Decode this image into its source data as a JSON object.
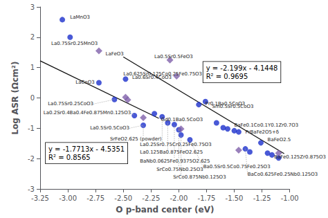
{
  "chart_data": {
    "type": "scatter",
    "xlabel": "O p-band center (eV)",
    "ylabel": "Log ASR (Ωcm²)",
    "xlim": [
      -3.25,
      -1.0
    ],
    "ylim": [
      -3.0,
      3.0
    ],
    "xticks": [
      {
        "value": -3.25,
        "label": "-3.25"
      },
      {
        "value": -3.0,
        "label": "-3.00"
      },
      {
        "value": -2.75,
        "label": "-2.75"
      },
      {
        "value": -2.5,
        "label": "-2.50"
      },
      {
        "value": -2.25,
        "label": "-2.25"
      },
      {
        "value": -2.0,
        "label": "-2.00"
      },
      {
        "value": -1.75,
        "label": "-1.75"
      },
      {
        "value": -1.5,
        "label": "-1.50"
      },
      {
        "value": -1.25,
        "label": "-1.25"
      },
      {
        "value": -1.0,
        "label": "-1.00"
      }
    ],
    "yticks": [
      -3,
      -2,
      -1,
      0,
      1,
      2,
      3
    ],
    "grid": false,
    "series": [
      {
        "type": "line",
        "color": "#111111",
        "x": [
          -3.25,
          -2.18
        ],
        "values": [
          1.221625,
          -0.673666
        ]
      },
      {
        "type": "line",
        "color": "#111111",
        "x": [
          -2.5,
          -1.05
        ],
        "values": [
          1.3527,
          -1.83585
        ]
      },
      {
        "type": "scatter",
        "marker": "circle",
        "color": "#1c2fcc",
        "x": [
          -3.05,
          -2.98,
          -2.72,
          -2.58,
          -2.48,
          -2.4,
          -2.32,
          -2.22,
          -2.15,
          -2.1,
          -2.04,
          -2.0,
          -1.98,
          -1.9,
          -1.82,
          -1.76,
          -1.66,
          -1.6,
          -1.56,
          -1.5,
          -1.46,
          -1.4,
          -1.36,
          -1.26,
          -1.2,
          -1.16,
          -1.1
        ],
        "values": [
          2.58,
          2.0,
          0.5,
          -0.05,
          0.62,
          -0.58,
          -0.9,
          -0.52,
          -0.62,
          -0.82,
          -0.88,
          -1.05,
          -1.22,
          -1.38,
          -0.22,
          -0.12,
          -0.82,
          -0.98,
          -1.02,
          -1.08,
          -1.12,
          -1.68,
          -1.78,
          -1.48,
          -1.82,
          -1.88,
          -1.98
        ]
      },
      {
        "type": "scatter",
        "marker": "diamond",
        "color": "#8060aa",
        "x": [
          -2.72,
          -2.48,
          -2.46,
          -2.32,
          -2.08,
          -2.02,
          -1.98,
          -1.46,
          -1.1
        ],
        "values": [
          1.55,
          0.02,
          -0.06,
          -0.65,
          1.25,
          0.72,
          -1.02,
          -1.72,
          -1.82
        ]
      }
    ],
    "annotations": [
      {
        "text": "SrFeO2.625 (powder)",
        "x": -2.32,
        "y": -0.9,
        "text_x": -2.62,
        "text_y": -1.35,
        "arrow": true
      },
      {
        "text": "La0.25Sr0.75Cr0.25Fe0.75O3",
        "x": -2.15,
        "y": -0.62,
        "text_x": -2.35,
        "text_y": -1.55,
        "arrow": true
      },
      {
        "text": "La0.125Ba0.875FeO2.625",
        "x": -2.1,
        "y": -0.82,
        "text_x": -2.35,
        "text_y": -1.8,
        "arrow": true
      },
      {
        "text": "BaNb0.0625Fe0.9375O2.625",
        "x": -2.04,
        "y": -0.88,
        "text_x": -2.35,
        "text_y": -2.08,
        "arrow": true
      },
      {
        "text": "SrCo0.75Nb0.25O3",
        "x": -2.0,
        "y": -1.05,
        "text_x": -2.2,
        "text_y": -2.35,
        "arrow": true
      },
      {
        "text": "SrCo0.875Nb0.125O3",
        "x": -1.98,
        "y": -1.22,
        "text_x": -2.05,
        "text_y": -2.62,
        "arrow": true
      },
      {
        "text": "Ba0.5Sr0.5Co0.75Fe0.25O3",
        "x": -1.9,
        "y": -1.38,
        "text_x": -1.78,
        "text_y": -2.28,
        "arrow": true
      },
      {
        "text": "BaCo0.625Fe0.25Nb0.125O3",
        "x": -1.4,
        "y": -1.68,
        "text_x": -1.38,
        "text_y": -2.52,
        "arrow": true
      },
      {
        "text": "LaMnO3",
        "x": -3.05,
        "y": 2.58,
        "text_x": -2.98,
        "text_y": 2.65,
        "arrow": false
      },
      {
        "text": "La0.75Sr0.25MnO3",
        "x": -2.98,
        "y": 2.0,
        "text_x": -3.15,
        "text_y": 1.8,
        "arrow": false
      },
      {
        "text": "LaCoO3",
        "x": -2.72,
        "y": 0.5,
        "text_x": -2.93,
        "text_y": 0.52,
        "arrow": false
      },
      {
        "text": "La0.75Sr0.25CoO3",
        "x": -2.58,
        "y": -0.05,
        "text_x": -3.18,
        "text_y": -0.2,
        "arrow": true
      },
      {
        "text": "La0.6Sr0.4CoO3",
        "x": -2.48,
        "y": 0.62,
        "text_x": -2.42,
        "text_y": 0.68,
        "arrow": false
      },
      {
        "text": "La0.2Sr0.4Ba0.4Fe0.875Mn0.125O3",
        "x": -2.4,
        "y": -0.58,
        "text_x": -3.22,
        "text_y": -0.5,
        "arrow": true
      },
      {
        "text": "La0.5Sr0.5CoO3",
        "x": -2.32,
        "y": -0.9,
        "text_x": -2.8,
        "text_y": -1.0,
        "arrow": true
      },
      {
        "text": "Gd0.1Ba0.5CoO3",
        "x": -2.22,
        "y": -0.52,
        "text_x": -2.16,
        "text_y": -0.72,
        "arrow": false
      },
      {
        "text": "Pr0.1Ba0.5CoO3",
        "x": -1.82,
        "y": -0.22,
        "text_x": -1.76,
        "text_y": -0.2,
        "arrow": false
      },
      {
        "text": "Sm0.5Sr0.5CoO3",
        "x": -1.76,
        "y": -0.12,
        "text_x": -1.7,
        "text_y": -0.28,
        "arrow": false
      },
      {
        "text": "BaFe0.1Co0.1Y0.1Zr0.7O3",
        "x": -1.56,
        "y": -1.02,
        "text_x": -1.5,
        "text_y": -0.9,
        "arrow": false
      },
      {
        "text": "PrBaFe2O5+δ",
        "x": -1.46,
        "y": -1.12,
        "text_x": -1.4,
        "text_y": -1.12,
        "arrow": false
      },
      {
        "text": "BaFeO2.5",
        "x": -1.26,
        "y": -1.48,
        "text_x": -1.2,
        "text_y": -1.38,
        "arrow": false
      },
      {
        "text": "BaFe0.125Zr0.875O3",
        "x": -1.2,
        "y": -1.82,
        "text_x": -1.14,
        "text_y": -1.96,
        "arrow": false
      },
      {
        "text": "LaFeO3",
        "x": -2.72,
        "y": 1.55,
        "text_x": -2.66,
        "text_y": 1.45,
        "arrow": false
      },
      {
        "text": "La0.5Sr0.5FeO3",
        "x": -2.08,
        "y": 1.25,
        "text_x": -2.22,
        "text_y": 1.35,
        "arrow": false
      },
      {
        "text": "La0.625Sr0.125Co0.25Fe0.75O3",
        "x": -2.02,
        "y": 0.72,
        "text_x": -2.5,
        "text_y": 0.78,
        "arrow": true
      }
    ],
    "equations": [
      {
        "lines": [
          "y = -1.7713x - 4.5351",
          "R² = 0.8565"
        ],
        "x": -3.2,
        "y": -1.82
      },
      {
        "lines": [
          "y = -2.199x - 4.1448",
          "R² = 0.9695"
        ],
        "x": -1.78,
        "y": 0.85
      }
    ]
  }
}
